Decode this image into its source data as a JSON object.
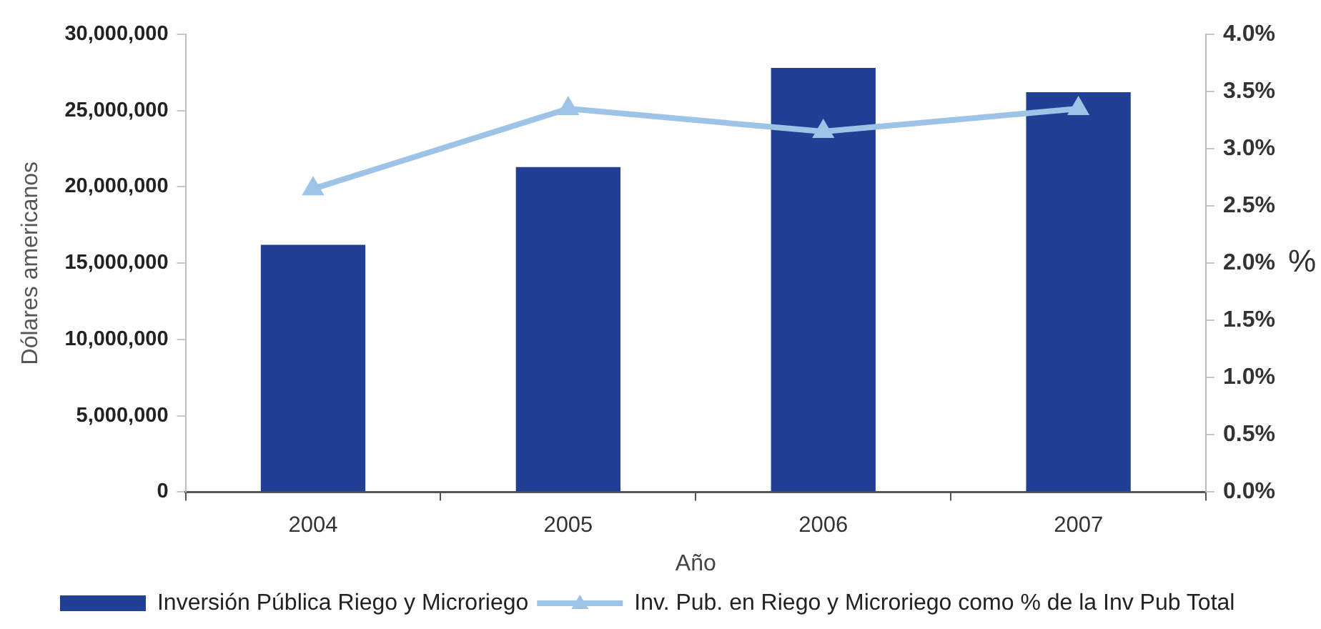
{
  "chart_data": {
    "type": "bar",
    "xlabel": "Año",
    "ylabel": "Dólares americanos",
    "y2label": "%",
    "categories": [
      "2004",
      "2005",
      "2006",
      "2007"
    ],
    "series": [
      {
        "name": "Inversión Pública Riego y Microriego",
        "color": "#213f95",
        "values": [
          16200000,
          21300000,
          27800000,
          26200000
        ]
      },
      {
        "name": "Inv. Pub. en Riego y Microriego como % de la Inv Pub Total",
        "type": "line",
        "axis": "y2",
        "color": "#9dc3e6",
        "values": [
          2.65,
          3.35,
          3.15,
          3.35
        ]
      }
    ],
    "ylim": [
      0,
      30000000
    ],
    "yticks": [
      {
        "value": 0,
        "label": "0"
      },
      {
        "value": 5000000,
        "label": "5,000,000"
      },
      {
        "value": 10000000,
        "label": "10,000,000"
      },
      {
        "value": 15000000,
        "label": "15,000,000"
      },
      {
        "value": 20000000,
        "label": "20,000,000"
      },
      {
        "value": 25000000,
        "label": "25,000,000"
      },
      {
        "value": 30000000,
        "label": "30,000,000"
      }
    ],
    "y2lim": [
      0,
      4
    ],
    "y2ticks": [
      {
        "value": 0,
        "label": "0.0%"
      },
      {
        "value": 0.5,
        "label": "0.5%"
      },
      {
        "value": 1,
        "label": "1.0%"
      },
      {
        "value": 1.5,
        "label": "1.5%"
      },
      {
        "value": 2,
        "label": "2.0%"
      },
      {
        "value": 2.5,
        "label": "2.5%"
      },
      {
        "value": 3,
        "label": "3.0%"
      },
      {
        "value": 3.5,
        "label": "3.5%"
      },
      {
        "value": 4,
        "label": "4.0%"
      }
    ],
    "grid": false,
    "legend": "bottom",
    "marker": "triangle",
    "line_style": "solid"
  }
}
